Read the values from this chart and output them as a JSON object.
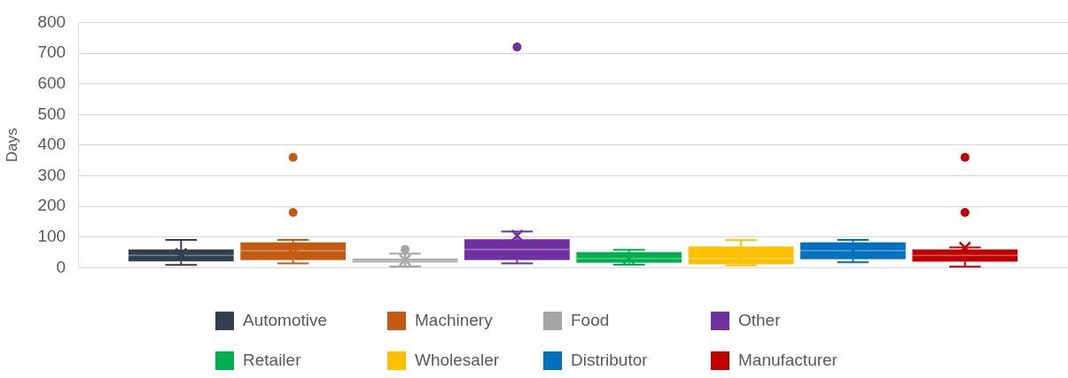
{
  "chart_data": {
    "type": "box",
    "ylabel": "Days",
    "categories": [
      null
    ],
    "ylim": [
      0,
      800
    ],
    "yticks": [
      0,
      100,
      200,
      300,
      400,
      500,
      600,
      700,
      800
    ],
    "grid": "y",
    "legend": "bottom",
    "series": [
      {
        "name": "Automotive",
        "color": "#333f50",
        "boxes": [
          {
            "low": 9,
            "q1": 21,
            "median": 40,
            "q3": 60,
            "high": 91,
            "mean": 45
          }
        ]
      },
      {
        "name": "Machinery",
        "color": "#c55a11",
        "boxes": [
          {
            "low": 14,
            "q1": 25,
            "median": 55,
            "q3": 83,
            "high": 91,
            "mean": 48,
            "outliers": [
              180,
              360
            ]
          }
        ]
      },
      {
        "name": "Food",
        "color": "#a5a5a5",
        "boxes": [
          {
            "low": 4,
            "q1": 17,
            "median": 22,
            "q3": 29,
            "high": 46,
            "mean": 25,
            "outliers": [
              60
            ]
          }
        ]
      },
      {
        "name": "Other",
        "color": "#7030a0",
        "boxes": [
          {
            "low": 14,
            "q1": 25,
            "median": 60,
            "q3": 93,
            "high": 118,
            "mean": 105,
            "outliers": [
              720
            ]
          }
        ]
      },
      {
        "name": "Retailer",
        "color": "#00b050",
        "boxes": [
          {
            "low": 10,
            "q1": 16,
            "median": 30,
            "q3": 51,
            "high": 58,
            "mean": 30
          }
        ]
      },
      {
        "name": "Wholesaler",
        "color": "#ffc000",
        "boxes": [
          {
            "low": 8,
            "q1": 11,
            "median": 30,
            "q3": 69,
            "high": 90,
            "mean": 35
          }
        ]
      },
      {
        "name": "Distributor",
        "color": "#0070c0",
        "boxes": [
          {
            "low": 18,
            "q1": 28,
            "median": 55,
            "q3": 83,
            "high": 91,
            "mean": 55
          }
        ]
      },
      {
        "name": "Manufacturer",
        "color": "#c00000",
        "boxes": [
          {
            "low": 3,
            "q1": 20,
            "median": 40,
            "q3": 60,
            "high": 66,
            "mean": 66,
            "outliers": [
              180,
              360
            ]
          }
        ]
      }
    ]
  }
}
